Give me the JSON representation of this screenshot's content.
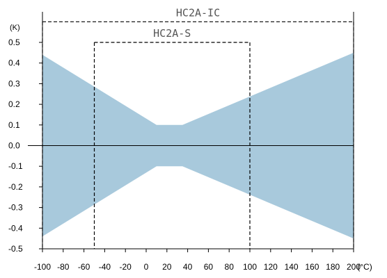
{
  "chart_data": {
    "type": "area",
    "title": "",
    "xlabel": "",
    "ylabel": "",
    "x_unit": "(°C)",
    "y_unit": "(K)",
    "xlim": [
      -100,
      200
    ],
    "ylim": [
      -0.5,
      0.5
    ],
    "x_ticks": [
      "-100",
      "-80",
      "-60",
      "-40",
      "-20",
      "0",
      "20",
      "40",
      "60",
      "80",
      "100",
      "120",
      "140",
      "160",
      "180",
      "200"
    ],
    "y_ticks": [
      "0.5",
      "0.4",
      "0.3",
      "0.2",
      "0.1",
      "0.0",
      "-0.1",
      "-0.2",
      "-0.3",
      "-0.4",
      "-0.5"
    ],
    "band": {
      "color": "#a8c9dc",
      "x": [
        -100,
        10,
        35,
        200
      ],
      "upper": [
        0.44,
        0.1,
        0.1,
        0.45
      ],
      "lower": [
        -0.44,
        -0.1,
        -0.1,
        -0.45
      ]
    },
    "ranges": [
      {
        "name": "HC2A-IC",
        "from": -100,
        "to": 200,
        "level": 0.6
      },
      {
        "name": "HC2A-S",
        "from": -50,
        "to": 100,
        "level": 0.5
      }
    ],
    "grid": false,
    "legend": "none",
    "colors": {
      "axis": "#000000",
      "dashed": "#000000",
      "band": "#a8c9dc",
      "range_text": "#555555"
    }
  }
}
